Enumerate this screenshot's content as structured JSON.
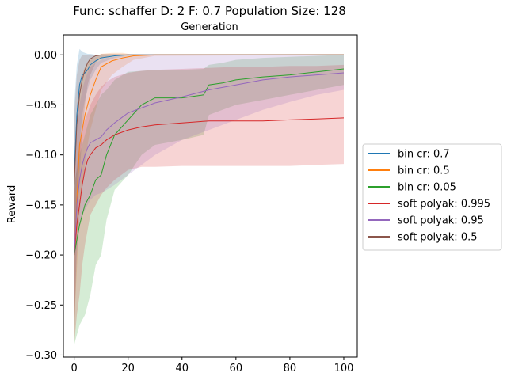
{
  "chart_data": {
    "type": "line",
    "title": "Func: schaffer D: 2 F: 0.7 Population Size: 128",
    "subtitle": "Generation",
    "xlabel": "",
    "ylabel": "Reward",
    "xlim": [
      -4,
      105
    ],
    "ylim": [
      -0.302,
      0.02
    ],
    "xticks": [
      0,
      20,
      40,
      60,
      80,
      100
    ],
    "yticks": [
      0.0,
      -0.05,
      -0.1,
      -0.15,
      -0.2,
      -0.25,
      -0.3
    ],
    "ytick_labels": [
      "0.00",
      "−0.05",
      "−0.10",
      "−0.15",
      "−0.20",
      "−0.25",
      "−0.30"
    ],
    "xtick_labels": [
      "0",
      "20",
      "40",
      "60",
      "80",
      "100"
    ],
    "grid": false,
    "legend_position": "center-right-outside",
    "series": [
      {
        "name": "bin cr: 0.7",
        "color": "#1f77b4",
        "x": [
          0,
          1,
          2,
          3,
          4,
          5,
          6,
          8,
          10,
          15,
          20,
          30,
          100
        ],
        "y": [
          -0.12,
          -0.06,
          -0.03,
          -0.02,
          -0.018,
          -0.015,
          -0.01,
          -0.006,
          -0.003,
          -0.001,
          0.0,
          0.0,
          0.0
        ],
        "upper": [
          -0.05,
          -0.01,
          0.006,
          0.003,
          0.002,
          0.001,
          0.001,
          0.0,
          0.0,
          0.0,
          0.0,
          0.0,
          0.0
        ],
        "lower": [
          -0.2,
          -0.13,
          -0.09,
          -0.06,
          -0.045,
          -0.035,
          -0.025,
          -0.015,
          -0.008,
          -0.003,
          -0.001,
          0.0,
          0.0
        ]
      },
      {
        "name": "bin cr: 0.5",
        "color": "#ff7f0e",
        "x": [
          0,
          2,
          3,
          4,
          5,
          6,
          8,
          10,
          14,
          18,
          22,
          30,
          100
        ],
        "y": [
          -0.2,
          -0.09,
          -0.075,
          -0.06,
          -0.05,
          -0.04,
          -0.025,
          -0.012,
          -0.006,
          -0.003,
          -0.001,
          0.0,
          0.0
        ],
        "upper": [
          -0.13,
          -0.03,
          -0.02,
          -0.012,
          -0.008,
          -0.005,
          -0.002,
          0.001,
          0.002,
          0.002,
          0.0,
          0.0,
          0.0
        ],
        "lower": [
          -0.27,
          -0.16,
          -0.13,
          -0.11,
          -0.09,
          -0.075,
          -0.055,
          -0.035,
          -0.02,
          -0.012,
          -0.005,
          -0.001,
          0.0
        ]
      },
      {
        "name": "bin cr: 0.05",
        "color": "#2ca02c",
        "x": [
          0,
          2,
          4,
          6,
          8,
          10,
          12,
          15,
          20,
          25,
          30,
          40,
          48,
          50,
          55,
          60,
          70,
          80,
          90,
          100
        ],
        "y": [
          -0.2,
          -0.17,
          -0.15,
          -0.14,
          -0.125,
          -0.12,
          -0.1,
          -0.08,
          -0.065,
          -0.05,
          -0.043,
          -0.043,
          -0.04,
          -0.03,
          -0.028,
          -0.025,
          -0.022,
          -0.02,
          -0.017,
          -0.014
        ],
        "upper": [
          -0.13,
          -0.1,
          -0.08,
          -0.06,
          -0.05,
          -0.04,
          -0.035,
          -0.025,
          -0.017,
          -0.016,
          -0.015,
          -0.015,
          -0.014,
          -0.01,
          -0.008,
          -0.005,
          -0.003,
          -0.002,
          -0.001,
          0.0
        ],
        "lower": [
          -0.29,
          -0.27,
          -0.26,
          -0.24,
          -0.21,
          -0.2,
          -0.165,
          -0.135,
          -0.12,
          -0.1,
          -0.09,
          -0.085,
          -0.08,
          -0.06,
          -0.055,
          -0.05,
          -0.045,
          -0.04,
          -0.035,
          -0.03
        ]
      },
      {
        "name": "soft polyak: 0.995",
        "color": "#d62728",
        "x": [
          0,
          1,
          2,
          3,
          4,
          5,
          6,
          8,
          10,
          12,
          15,
          20,
          25,
          30,
          40,
          50,
          60,
          70,
          80,
          90,
          100
        ],
        "y": [
          -0.2,
          -0.17,
          -0.15,
          -0.13,
          -0.115,
          -0.105,
          -0.1,
          -0.093,
          -0.09,
          -0.085,
          -0.08,
          -0.075,
          -0.072,
          -0.07,
          -0.068,
          -0.066,
          -0.066,
          -0.066,
          -0.065,
          -0.064,
          -0.063
        ],
        "upper": [
          -0.14,
          -0.11,
          -0.09,
          -0.075,
          -0.065,
          -0.058,
          -0.05,
          -0.04,
          -0.032,
          -0.027,
          -0.022,
          -0.018,
          -0.016,
          -0.015,
          -0.014,
          -0.013,
          -0.012,
          -0.012,
          -0.011,
          -0.011,
          -0.01
        ],
        "lower": [
          -0.29,
          -0.26,
          -0.24,
          -0.21,
          -0.19,
          -0.175,
          -0.16,
          -0.15,
          -0.14,
          -0.133,
          -0.125,
          -0.115,
          -0.112,
          -0.112,
          -0.111,
          -0.111,
          -0.111,
          -0.111,
          -0.111,
          -0.11,
          -0.109
        ]
      },
      {
        "name": "soft polyak: 0.95",
        "color": "#9467bd",
        "x": [
          0,
          1,
          2,
          3,
          4,
          5,
          6,
          8,
          10,
          12,
          15,
          20,
          30,
          40,
          50,
          60,
          70,
          80,
          90,
          100
        ],
        "y": [
          -0.2,
          -0.15,
          -0.125,
          -0.11,
          -0.1,
          -0.093,
          -0.088,
          -0.085,
          -0.082,
          -0.075,
          -0.068,
          -0.058,
          -0.048,
          -0.042,
          -0.035,
          -0.03,
          -0.025,
          -0.022,
          -0.02,
          -0.018
        ],
        "upper": [
          -0.13,
          -0.08,
          -0.05,
          -0.035,
          -0.025,
          -0.018,
          -0.012,
          -0.008,
          -0.005,
          -0.003,
          -0.002,
          -0.001,
          0.0,
          0.0,
          0.0,
          0.0,
          0.0,
          0.0,
          0.0,
          0.0
        ],
        "lower": [
          -0.27,
          -0.2,
          -0.17,
          -0.16,
          -0.155,
          -0.15,
          -0.145,
          -0.14,
          -0.138,
          -0.135,
          -0.13,
          -0.12,
          -0.1,
          -0.085,
          -0.075,
          -0.065,
          -0.055,
          -0.047,
          -0.04,
          -0.035
        ]
      },
      {
        "name": "soft polyak: 0.5",
        "color": "#8c564b",
        "x": [
          0,
          1,
          2,
          3,
          4,
          5,
          6,
          8,
          10,
          15,
          100
        ],
        "y": [
          -0.13,
          -0.07,
          -0.04,
          -0.025,
          -0.015,
          -0.008,
          -0.004,
          -0.001,
          0.0,
          0.0,
          0.0
        ],
        "upper": [
          -0.06,
          -0.02,
          -0.005,
          0.0,
          0.0,
          0.0,
          0.0,
          0.0,
          0.0,
          0.0,
          0.0
        ],
        "lower": [
          -0.29,
          -0.18,
          -0.12,
          -0.08,
          -0.05,
          -0.03,
          -0.02,
          -0.008,
          -0.003,
          0.0,
          0.0
        ]
      }
    ]
  }
}
